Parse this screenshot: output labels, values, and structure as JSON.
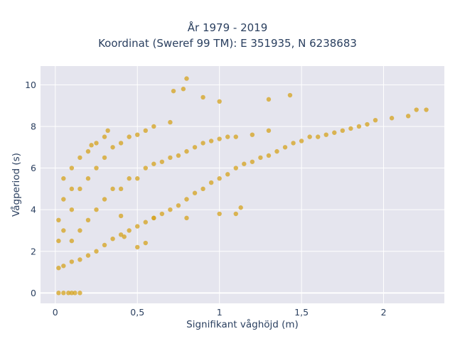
{
  "chart_data": {
    "type": "scatter",
    "title_line1": "År 1979 - 2019",
    "title_line2": "Koordinat (Sweref 99 TM): E 351935, N 6238683",
    "xlabel": "Signifikant våghöjd (m)",
    "ylabel": "Vågperiod (s)",
    "xlim": [
      -0.09,
      2.37
    ],
    "ylim": [
      -0.5,
      10.9
    ],
    "x_ticks": [
      0,
      0.5,
      1,
      1.5,
      2
    ],
    "x_tick_labels": [
      "0",
      "0,5",
      "1",
      "1,5",
      "2"
    ],
    "y_ticks": [
      0,
      2,
      4,
      6,
      8,
      10
    ],
    "y_tick_labels": [
      "0",
      "2",
      "4",
      "6",
      "8",
      "10"
    ],
    "grid": true,
    "marker_color": "#d4a21c",
    "plot_bg": "#e5e5ee",
    "approximate_points": [
      [
        0.02,
        0.0
      ],
      [
        0.05,
        0.0
      ],
      [
        0.08,
        0.0
      ],
      [
        0.1,
        0.0
      ],
      [
        0.12,
        0.0
      ],
      [
        0.15,
        0.0
      ],
      [
        0.02,
        1.2
      ],
      [
        0.02,
        2.5
      ],
      [
        0.02,
        3.5
      ],
      [
        0.05,
        1.3
      ],
      [
        0.05,
        3.0
      ],
      [
        0.05,
        4.5
      ],
      [
        0.05,
        5.5
      ],
      [
        0.1,
        1.5
      ],
      [
        0.1,
        2.5
      ],
      [
        0.1,
        4.0
      ],
      [
        0.1,
        5.0
      ],
      [
        0.1,
        6.0
      ],
      [
        0.15,
        1.6
      ],
      [
        0.15,
        3.0
      ],
      [
        0.15,
        5.0
      ],
      [
        0.15,
        6.5
      ],
      [
        0.2,
        1.8
      ],
      [
        0.2,
        3.5
      ],
      [
        0.2,
        5.5
      ],
      [
        0.2,
        6.8
      ],
      [
        0.25,
        2.0
      ],
      [
        0.25,
        4.0
      ],
      [
        0.25,
        6.0
      ],
      [
        0.25,
        7.2
      ],
      [
        0.3,
        2.3
      ],
      [
        0.3,
        4.5
      ],
      [
        0.3,
        6.5
      ],
      [
        0.3,
        7.5
      ],
      [
        0.35,
        2.6
      ],
      [
        0.35,
        5.0
      ],
      [
        0.35,
        7.0
      ],
      [
        0.4,
        2.8
      ],
      [
        0.4,
        5.0
      ],
      [
        0.4,
        7.2
      ],
      [
        0.45,
        3.0
      ],
      [
        0.45,
        5.5
      ],
      [
        0.45,
        7.5
      ],
      [
        0.5,
        3.2
      ],
      [
        0.5,
        5.5
      ],
      [
        0.5,
        7.6
      ],
      [
        0.55,
        3.4
      ],
      [
        0.55,
        6.0
      ],
      [
        0.55,
        7.8
      ],
      [
        0.6,
        3.6
      ],
      [
        0.6,
        6.2
      ],
      [
        0.6,
        8.0
      ],
      [
        0.65,
        3.8
      ],
      [
        0.65,
        6.3
      ],
      [
        0.7,
        4.0
      ],
      [
        0.7,
        6.5
      ],
      [
        0.7,
        8.2
      ],
      [
        0.75,
        4.2
      ],
      [
        0.75,
        6.6
      ],
      [
        0.8,
        4.5
      ],
      [
        0.8,
        6.8
      ],
      [
        0.85,
        4.8
      ],
      [
        0.85,
        7.0
      ],
      [
        0.9,
        5.0
      ],
      [
        0.9,
        7.2
      ],
      [
        0.95,
        5.3
      ],
      [
        0.95,
        7.3
      ],
      [
        1.0,
        5.5
      ],
      [
        1.0,
        7.4
      ],
      [
        1.05,
        5.7
      ],
      [
        1.05,
        7.5
      ],
      [
        1.1,
        6.0
      ],
      [
        1.1,
        7.5
      ],
      [
        1.15,
        6.2
      ],
      [
        1.2,
        6.3
      ],
      [
        1.2,
        7.6
      ],
      [
        1.25,
        6.5
      ],
      [
        1.3,
        6.6
      ],
      [
        1.3,
        7.8
      ],
      [
        1.35,
        6.8
      ],
      [
        1.4,
        7.0
      ],
      [
        1.45,
        7.2
      ],
      [
        1.5,
        7.3
      ],
      [
        1.55,
        7.5
      ],
      [
        1.6,
        7.5
      ],
      [
        1.65,
        7.6
      ],
      [
        1.7,
        7.7
      ],
      [
        1.75,
        7.8
      ],
      [
        1.8,
        7.9
      ],
      [
        1.85,
        8.0
      ],
      [
        1.9,
        8.1
      ],
      [
        1.95,
        8.3
      ],
      [
        2.05,
        8.4
      ],
      [
        2.15,
        8.5
      ],
      [
        2.2,
        8.8
      ],
      [
        2.26,
        8.8
      ],
      [
        0.78,
        9.8
      ],
      [
        0.8,
        10.3
      ],
      [
        0.72,
        9.7
      ],
      [
        0.9,
        9.4
      ],
      [
        1.0,
        9.2
      ],
      [
        1.3,
        9.3
      ],
      [
        1.43,
        9.5
      ],
      [
        0.32,
        7.8
      ],
      [
        0.22,
        7.1
      ],
      [
        0.4,
        3.7
      ],
      [
        0.6,
        3.6
      ],
      [
        0.8,
        3.6
      ],
      [
        1.0,
        3.8
      ],
      [
        1.1,
        3.8
      ],
      [
        1.13,
        4.1
      ],
      [
        0.42,
        2.7
      ],
      [
        0.55,
        2.4
      ],
      [
        0.5,
        2.2
      ]
    ]
  }
}
